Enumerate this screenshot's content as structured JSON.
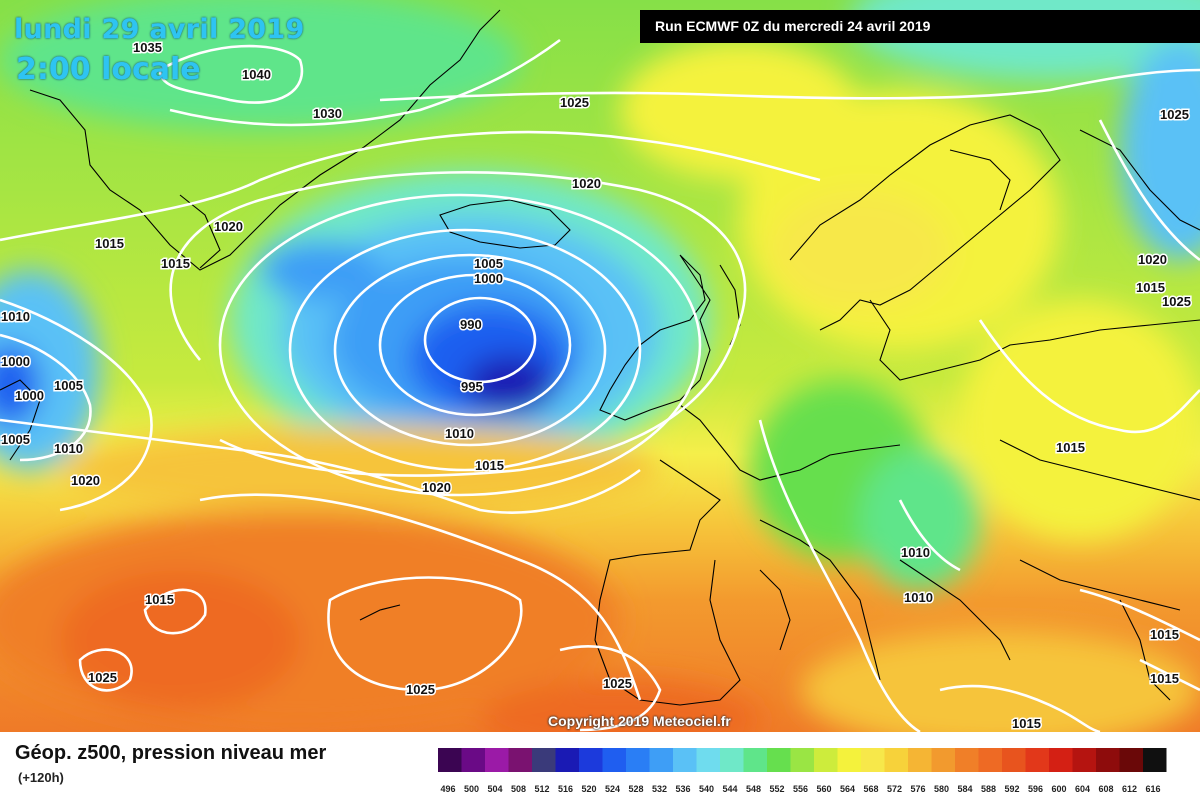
{
  "header": {
    "date": "lundi 29 avril 2019",
    "time": "2:00 locale",
    "run": "Run ECMWF 0Z du mercredi 24 avril 2019"
  },
  "map": {
    "isobar_labels": [
      "1035",
      "1040",
      "1030",
      "1025",
      "1020",
      "1015",
      "1010",
      "1005",
      "1000",
      "990",
      "995",
      "1025",
      "1020",
      "1015",
      "1010",
      "1005",
      "1000",
      "1000",
      "1005",
      "1010",
      "1015",
      "1020",
      "1020",
      "1015",
      "1010",
      "1015",
      "1025",
      "1025",
      "1015",
      "1015",
      "1015",
      "1010",
      "1015",
      "1025",
      "1025",
      "1020"
    ],
    "copyright": "Copyright 2019 Meteociel.fr"
  },
  "legend": {
    "title": "Géop. z500, pression niveau mer",
    "subtitle": "(+120h)",
    "ticks": [
      "496",
      "500",
      "504",
      "508",
      "512",
      "516",
      "520",
      "524",
      "528",
      "532",
      "536",
      "540",
      "544",
      "548",
      "552",
      "556",
      "560",
      "564",
      "568",
      "572",
      "576",
      "580",
      "584",
      "588",
      "592",
      "596",
      "600",
      "604",
      "608",
      "612",
      "616"
    ],
    "colors": [
      "#3b0552",
      "#6a0a86",
      "#9b1aa7",
      "#7a1270",
      "#3a3a7a",
      "#1a1ab4",
      "#1c3adc",
      "#1f5ef0",
      "#2a7ef5",
      "#3e9ef6",
      "#5ac1f6",
      "#6fdcee",
      "#6fe8c8",
      "#5fe58a",
      "#66df4e",
      "#9ae544",
      "#cdec3c",
      "#f4f23c",
      "#f7e84a",
      "#f7d23a",
      "#f5b534",
      "#f29a2e",
      "#f07f28",
      "#ee6a24",
      "#e8541e",
      "#e2381a",
      "#d42014",
      "#b51410",
      "#8e0c0c",
      "#6a0808",
      "#101010"
    ]
  }
}
